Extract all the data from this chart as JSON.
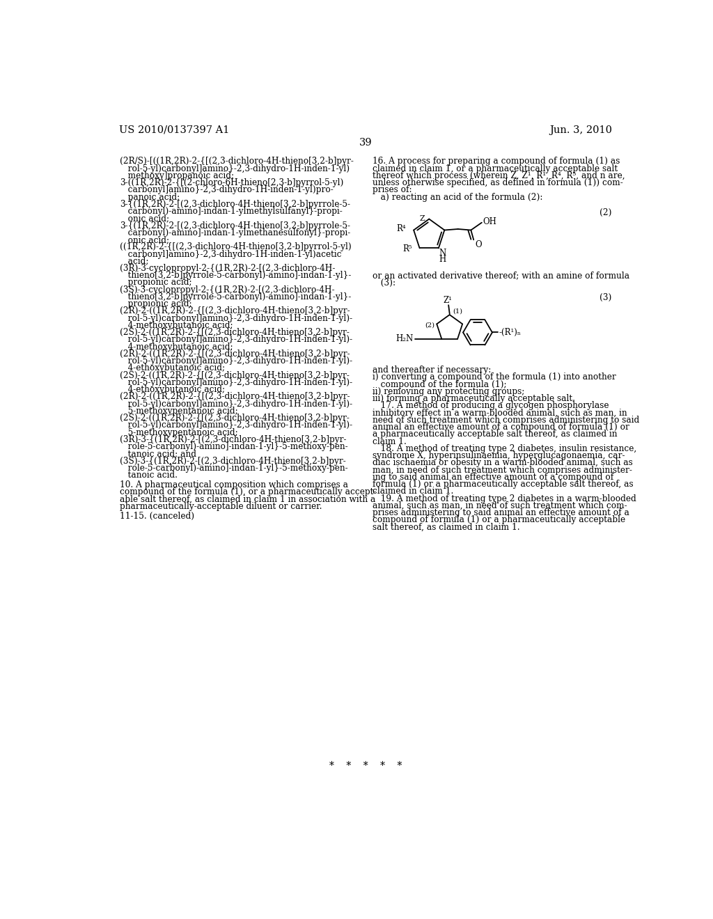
{
  "background_color": "#ffffff",
  "header_left": "US 2010/0137397 A1",
  "header_right": "Jun. 3, 2010",
  "page_number": "39",
  "left_column_text": [
    "(2R/S)-[((1R,2R)-2-{[(2,3-dichloro-4H-thieno[3,2-b]pyr-",
    "   rol-5-yl)carbonyl]amino}-2,3-dihydro-1H-inden-1-yl)",
    "   methoxy]propanoic acid;",
    "3-((1R,2R)-2-{[(2-chloro-6H-thieno[2,3-b]pyrrol-5-yl)",
    "   carbonyl]amino}-2,3-dihydro-1H-inden-1-yl)pro-",
    "   panoic acid;",
    "3-{(1R,2R)-2-[(2,3-dichloro-4H-thieno[3,2-b]pyrrole-5-",
    "   carbonyl)-amino]-indan-1-ylmethylsulfanyl}-propi-",
    "   onic acid;",
    "3-{(1R,2R)-2-[(2,3-dichloro-4H-thieno[3,2-b]pyrrole-5-",
    "   carbonyl)-amino]-indan-1-ylmethanesulfonyl}-propi-",
    "   onic acid;",
    "((1R,2R)-2-{[(2,3-dichloro-4H-thieno[3,2-b]pyrrol-5-yl)",
    "   carbonyl]amino}-2,3-dihydro-1H-inden-1-yl)acetic",
    "   acid;",
    "(3R)-3-cyclopropyl-2-{(1R,2R)-2-[(2,3-dichloro-4H-",
    "   thieno[3,2-b]pyrrole-5-carbonyl)-amino]-indan-1-yl}-",
    "   propionic acid;",
    "(3S)-3-cyclopropyl-2-{(1R,2R)-2-[(2,3-dichloro-4H-",
    "   thieno[3,2-b]pyrrole-5-carbonyl)-amino]-indan-1-yl}-",
    "   propionic acid;",
    "(2R)-2-((1R,2R)-2-{[(2,3-dichloro-4H-thieno[3,2-b]pyr-",
    "   rol-5-yl)carbonyl]amino}-2,3-dihydro-1H-inden-1-yl)-",
    "   4-methoxybutanoic acid;",
    "(2S)-2-((1R,2R)-2-{[(2,3-dichloro-4H-thieno[3,2-b]pyr-",
    "   rol-5-yl)carbonyl]amino}-2,3-dihydro-1H-inden-1-yl)-",
    "   4-methoxybutanoic acid;",
    "(2R)-2-((1R,2R)-2-{[(2,3-dichloro-4H-thieno[3,2-b]pyr-",
    "   rol-5-yl)carbonyl]amino}-2,3-dihydro-1H-inden-1-yl)-",
    "   4-ethoxybutanoic acid;",
    "(2S)-2-((1R,2R)-2-{[(2,3-dichloro-4H-thieno[3,2-b]pyr-",
    "   rol-5-yl)carbonyl]amino}-2,3-dihydro-1H-inden-1-yl)-",
    "   4-ethoxybutanoic acid;",
    "(2R)-2-((1R,2R)-2-{[(2,3-dichloro-4H-thieno[3,2-b]pyr-",
    "   rol-5-yl)carbonyl]amino}-2,3-dihydro-1H-inden-1-yl)-",
    "   5-methoxypentanoic acid;",
    "(2S)-2-((1R,2R)-2-{[(2,3-dichloro-4H-thieno[3,2-b]pyr-",
    "   rol-5-yl)carbonyl]amino}-2,3-dihydro-1H-inden-1-yl)-",
    "   5-methoxypentanoic acid;",
    "(3R)-3-{(1R,2R)-2-[(2,3-dichloro-4H-thieno[3,2-b]pyr-",
    "   role-5-carbonyl)-amino]-indan-1-yl}-5-methoxy-pen-",
    "   tanoic acid; and",
    "(3S)-3-{(1R,2R)-2-[(2,3-dichloro-4H-thieno[3,2-b]pyr-",
    "   role-5-carbonyl)-amino]-indan-1-yl}-5-methoxy-pen-",
    "   tanoic acid."
  ],
  "claim10_text": [
    "10. A pharmaceutical composition which comprises a",
    "compound of the formula (1), or a pharmaceutically accept-",
    "able salt thereof, as claimed in claim 1 in association with a",
    "pharmaceutically-acceptable diluent or carrier."
  ],
  "claim11_text": "11-15. (canceled)",
  "right_column_text_top": [
    "16. A process for preparing a compound of formula (1) as",
    "claimed in claim 1, or a pharmaceutically acceptable salt",
    "thereof which process (wherein Z, Z¹, R¹, R⁴, R⁵, and n are,",
    "unless otherwise specified, as defined in formula (1)) com-",
    "prises of:",
    "   a) reacting an acid of the formula (2):"
  ],
  "formula2_label": "(2)",
  "formula3_label": "(3)",
  "right_after_formula2": [
    "or an activated derivative thereof; with an amine of formula",
    "   (3):"
  ],
  "right_after_formula3": [
    "and thereafter if necessary:",
    "i) converting a compound of the formula (1) into another",
    "   compound of the formula (1);",
    "ii) removing any protecting groups;",
    "iii) forming a pharmaceutically acceptable salt.",
    "   17. A method of producing a glycogen phosphorylase",
    "inhibitory effect in a warm-blooded animal, such as man, in",
    "need of such treatment which comprises administering to said",
    "animal an effective amount of a compound of formula (1) or",
    "a pharmaceutically acceptable salt thereof, as claimed in",
    "claim 1.",
    "   18. A method of treating type 2 diabetes, insulin resistance,",
    "syndrome X, hyperinsulinaemia, hyperglucagonaemia, car-",
    "diac ischaemia or obesity in a warm-blooded animal, such as",
    "man, in need of such treatment which comprises administer-",
    "ing to said animal an effective amount of a compound of",
    "formula (1) or a pharmaceutically acceptable salt thereof, as",
    "claimed in claim 1.",
    "   19. A method of treating type 2 diabetes in a warm-blooded",
    "animal, such as man, in need of such treatment which com-",
    "prises administering to said animal an effective amount of a",
    "compound of formula (1) or a pharmaceutically acceptable",
    "salt thereof, as claimed in claim 1."
  ],
  "asterisks": "*    *    *    *    *"
}
